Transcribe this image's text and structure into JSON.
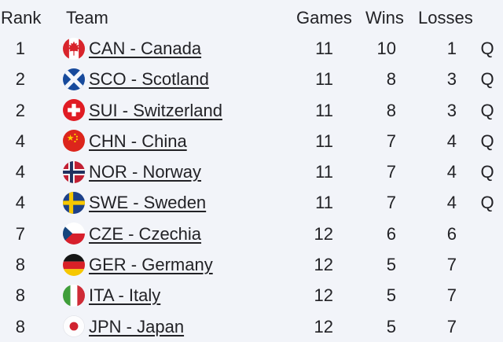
{
  "table": {
    "columns": {
      "rank": "Rank",
      "team": "Team",
      "games": "Games",
      "wins": "Wins",
      "losses": "Losses"
    },
    "qualified_marker": "Q",
    "rows": [
      {
        "rank": "1",
        "flag": "can",
        "flag_name": "canada-flag",
        "team": "CAN - Canada",
        "games": "11",
        "wins": "10",
        "losses": "1",
        "q": "Q"
      },
      {
        "rank": "2",
        "flag": "sco",
        "flag_name": "scotland-flag",
        "team": "SCO - Scotland",
        "games": "11",
        "wins": "8",
        "losses": "3",
        "q": "Q"
      },
      {
        "rank": "2",
        "flag": "sui",
        "flag_name": "switzerland-flag",
        "team": "SUI - Switzerland",
        "games": "11",
        "wins": "8",
        "losses": "3",
        "q": "Q"
      },
      {
        "rank": "4",
        "flag": "chn",
        "flag_name": "china-flag",
        "team": "CHN - China",
        "games": "11",
        "wins": "7",
        "losses": "4",
        "q": "Q"
      },
      {
        "rank": "4",
        "flag": "nor",
        "flag_name": "norway-flag",
        "team": "NOR - Norway",
        "games": "11",
        "wins": "7",
        "losses": "4",
        "q": "Q"
      },
      {
        "rank": "4",
        "flag": "swe",
        "flag_name": "sweden-flag",
        "team": "SWE - Sweden",
        "games": "11",
        "wins": "7",
        "losses": "4",
        "q": "Q"
      },
      {
        "rank": "7",
        "flag": "cze",
        "flag_name": "czechia-flag",
        "team": "CZE - Czechia",
        "games": "12",
        "wins": "6",
        "losses": "6",
        "q": ""
      },
      {
        "rank": "8",
        "flag": "ger",
        "flag_name": "germany-flag",
        "team": "GER - Germany",
        "games": "12",
        "wins": "5",
        "losses": "7",
        "q": ""
      },
      {
        "rank": "8",
        "flag": "ita",
        "flag_name": "italy-flag",
        "team": "ITA - Italy",
        "games": "12",
        "wins": "5",
        "losses": "7",
        "q": ""
      },
      {
        "rank": "8",
        "flag": "jpn",
        "flag_name": "japan-flag",
        "team": "JPN - Japan",
        "games": "12",
        "wins": "5",
        "losses": "7",
        "q": ""
      }
    ],
    "colors": {
      "background": "#f2f4f9",
      "text": "#222226"
    }
  }
}
